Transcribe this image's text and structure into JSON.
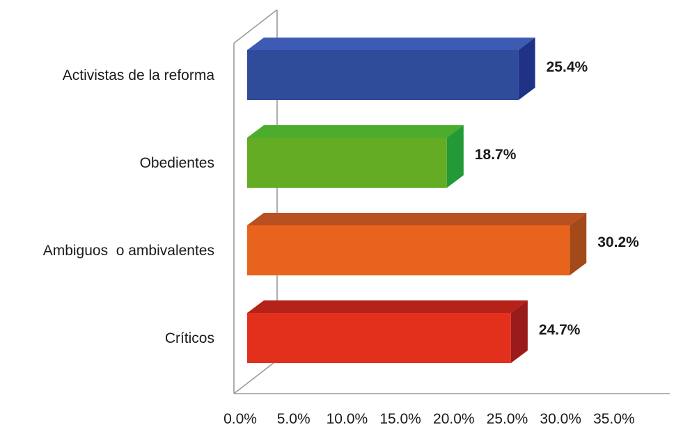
{
  "chart_data": {
    "type": "bar",
    "orientation": "horizontal",
    "three_d": true,
    "title": "",
    "xlabel": "",
    "ylabel": "",
    "categories": [
      "Activistas de la reforma",
      "Obedientes",
      "Ambiguos  o ambivalentes",
      "Críticos"
    ],
    "values": [
      25.4,
      18.7,
      30.2,
      24.7
    ],
    "value_labels": [
      "25.4%",
      "18.7%",
      "30.2%",
      "24.7%"
    ],
    "xlim": [
      0,
      35
    ],
    "x_ticks": [
      0,
      5,
      10,
      15,
      20,
      25,
      30,
      35
    ],
    "x_tick_labels": [
      "0.0%",
      "5.0%",
      "10.0%",
      "15.0%",
      "20.0%",
      "25.0%",
      "30.0%",
      "35.0%"
    ],
    "grid": false,
    "legend": "none",
    "bar_colors": [
      {
        "front": "#2f4c9b",
        "top": "#3d5bb2",
        "side": "#1f3285"
      },
      {
        "front": "#63ac23",
        "top": "#4cac2c",
        "side": "#239a37"
      },
      {
        "front": "#e8641d",
        "top": "#b9501f",
        "side": "#a44919"
      },
      {
        "front": "#e3301c",
        "top": "#b5221a",
        "side": "#9a1b1b"
      }
    ]
  }
}
